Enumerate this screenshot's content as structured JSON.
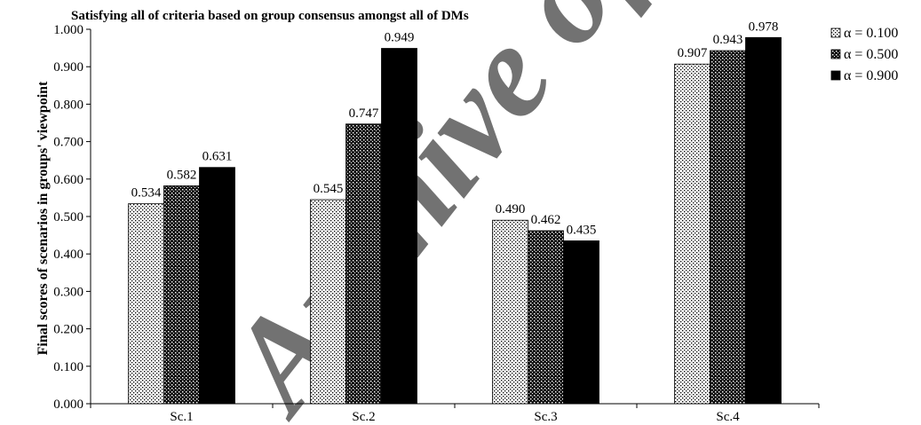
{
  "chart_data": {
    "type": "bar",
    "title": "Satisfying all of criteria based on group consensus amongst all of DMs",
    "ylabel": "Final scores of scenarios in groups' viewpoint",
    "xlabel": "",
    "categories": [
      "Sc.1",
      "Sc.2",
      "Sc.3",
      "Sc.4"
    ],
    "series": [
      {
        "name": "α = 0.100",
        "values": [
          0.534,
          0.545,
          0.49,
          0.907
        ],
        "labels": [
          "0.534",
          "0.545",
          "0.490",
          "0.907"
        ],
        "fill": "dots-light"
      },
      {
        "name": "α = 0.500",
        "values": [
          0.582,
          0.747,
          0.462,
          0.943
        ],
        "labels": [
          "0.582",
          "0.747",
          "0.462",
          "0.943"
        ],
        "fill": "dots-dark"
      },
      {
        "name": "α = 0.900",
        "values": [
          0.631,
          0.949,
          0.435,
          0.978
        ],
        "labels": [
          "0.631",
          "0.949",
          "0.435",
          "0.978"
        ],
        "fill": "solid"
      }
    ],
    "ylim": [
      0,
      1.0
    ],
    "yticks": [
      "0.000",
      "0.100",
      "0.200",
      "0.300",
      "0.400",
      "0.500",
      "0.600",
      "0.700",
      "0.800",
      "0.900",
      "1.000"
    ],
    "grid": false,
    "legend_position": "right",
    "colors": {
      "solid": "#000000",
      "light_bg": "#ffffff",
      "dark_bg": "#4a4a4a"
    },
    "watermark": "Archive of SID"
  }
}
